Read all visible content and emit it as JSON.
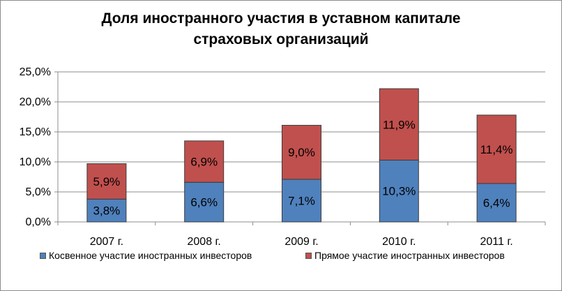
{
  "chart_data": {
    "type": "bar",
    "stacked": true,
    "title_lines": [
      "Доля иностранного участия в уставном капитале",
      "страховых организаций"
    ],
    "categories": [
      "2007 г.",
      "2008 г.",
      "2009 г.",
      "2010 г.",
      "2011 г."
    ],
    "series": [
      {
        "name": "Косвенное участие иностранных инвесторов",
        "color": "#4f81bd",
        "values": [
          3.8,
          6.6,
          7.1,
          10.3,
          6.4
        ],
        "labels": [
          "3,8%",
          "6,6%",
          "7,1%",
          "10,3%",
          "6,4%"
        ]
      },
      {
        "name": "Прямое участие иностранных инвесторов",
        "color": "#c0504d",
        "values": [
          5.9,
          6.9,
          9.0,
          11.9,
          11.4
        ],
        "labels": [
          "5,9%",
          "6,9%",
          "9,0%",
          "11,9%",
          "11,4%"
        ]
      }
    ],
    "ylim": [
      0,
      25
    ],
    "yticks": [
      0,
      5,
      10,
      15,
      20,
      25
    ],
    "ytick_labels": [
      "0,0%",
      "5,0%",
      "10,0%",
      "15,0%",
      "20,0%",
      "25,0%"
    ],
    "grid": "horizontal",
    "legend_position": "bottom"
  }
}
